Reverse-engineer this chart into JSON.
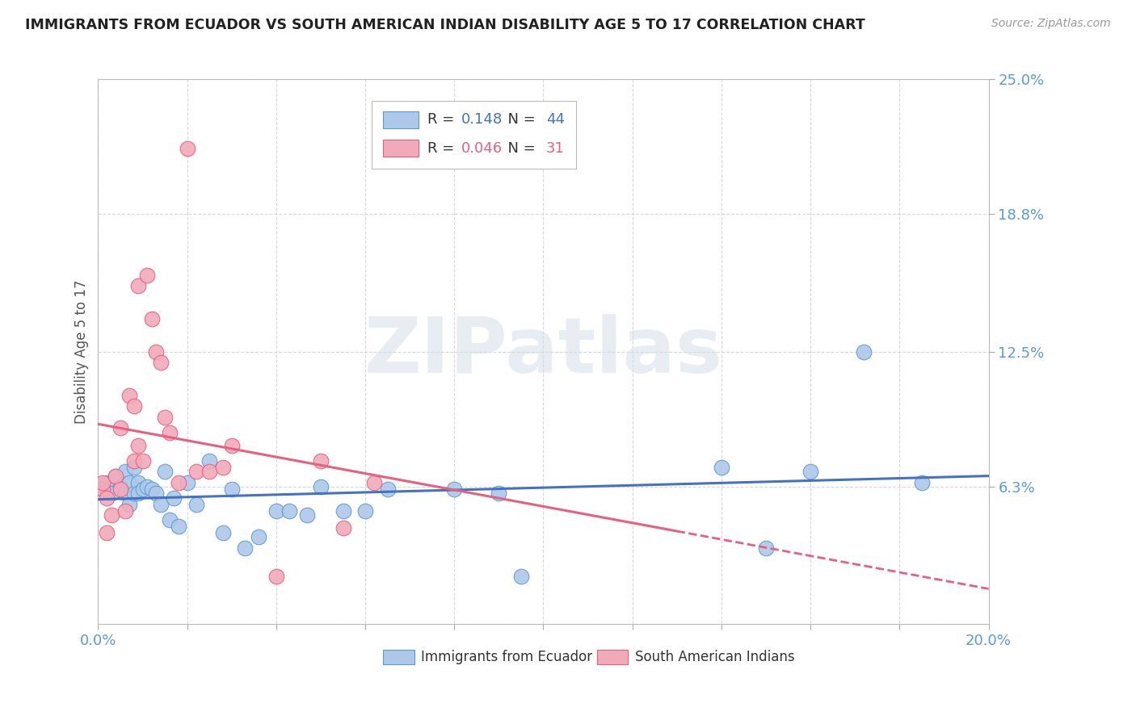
{
  "title": "IMMIGRANTS FROM ECUADOR VS SOUTH AMERICAN INDIAN DISABILITY AGE 5 TO 17 CORRELATION CHART",
  "source": "Source: ZipAtlas.com",
  "ylabel": "Disability Age 5 to 17",
  "xlim": [
    0.0,
    0.2
  ],
  "ylim": [
    0.0,
    0.25
  ],
  "xticks": [
    0.0,
    0.02,
    0.04,
    0.06,
    0.08,
    0.1,
    0.12,
    0.14,
    0.16,
    0.18,
    0.2
  ],
  "yticks": [
    0.0,
    0.063,
    0.125,
    0.188,
    0.25
  ],
  "yticklabels": [
    "",
    "6.3%",
    "12.5%",
    "18.8%",
    "25.0%"
  ],
  "blue_R": "0.148",
  "blue_N": "44",
  "pink_R": "0.046",
  "pink_N": "31",
  "blue_label": "Immigrants from Ecuador",
  "pink_label": "South American Indians",
  "blue_color": "#adc8e8",
  "pink_color": "#f2aabb",
  "blue_edge_color": "#5b9bd5",
  "pink_edge_color": "#e8607a",
  "blue_line_color": "#4472c4",
  "pink_line_color": "#e86080",
  "background_color": "#ffffff",
  "grid_color": "#d8d8d8",
  "title_color": "#222222",
  "axis_label_color": "#555555",
  "right_tick_color": "#5b9bd5",
  "bottom_tick_color": "#5b9bd5",
  "blue_x": [
    0.001,
    0.002,
    0.003,
    0.004,
    0.005,
    0.006,
    0.006,
    0.007,
    0.007,
    0.008,
    0.008,
    0.009,
    0.009,
    0.01,
    0.011,
    0.012,
    0.013,
    0.014,
    0.015,
    0.016,
    0.017,
    0.018,
    0.02,
    0.022,
    0.025,
    0.028,
    0.03,
    0.033,
    0.036,
    0.04,
    0.043,
    0.047,
    0.05,
    0.055,
    0.06,
    0.065,
    0.08,
    0.09,
    0.095,
    0.14,
    0.15,
    0.16,
    0.172,
    0.185
  ],
  "blue_y": [
    0.062,
    0.065,
    0.06,
    0.068,
    0.063,
    0.06,
    0.07,
    0.065,
    0.055,
    0.06,
    0.072,
    0.065,
    0.06,
    0.062,
    0.063,
    0.062,
    0.06,
    0.055,
    0.07,
    0.048,
    0.058,
    0.045,
    0.065,
    0.055,
    0.075,
    0.042,
    0.062,
    0.035,
    0.04,
    0.052,
    0.052,
    0.05,
    0.063,
    0.052,
    0.052,
    0.062,
    0.062,
    0.06,
    0.022,
    0.072,
    0.035,
    0.07,
    0.125,
    0.065
  ],
  "pink_x": [
    0.001,
    0.001,
    0.002,
    0.002,
    0.003,
    0.004,
    0.005,
    0.005,
    0.006,
    0.007,
    0.008,
    0.008,
    0.009,
    0.009,
    0.01,
    0.011,
    0.012,
    0.013,
    0.014,
    0.015,
    0.016,
    0.018,
    0.02,
    0.022,
    0.025,
    0.028,
    0.03,
    0.04,
    0.05,
    0.055,
    0.062
  ],
  "pink_y": [
    0.062,
    0.065,
    0.042,
    0.058,
    0.05,
    0.068,
    0.062,
    0.09,
    0.052,
    0.105,
    0.075,
    0.1,
    0.082,
    0.155,
    0.075,
    0.16,
    0.14,
    0.125,
    0.12,
    0.095,
    0.088,
    0.065,
    0.218,
    0.07,
    0.07,
    0.072,
    0.082,
    0.022,
    0.075,
    0.044,
    0.065
  ],
  "watermark_text": "ZIPatlas",
  "watermark_color": "#d0dce8",
  "figsize": [
    14.06,
    8.92
  ],
  "dpi": 100
}
